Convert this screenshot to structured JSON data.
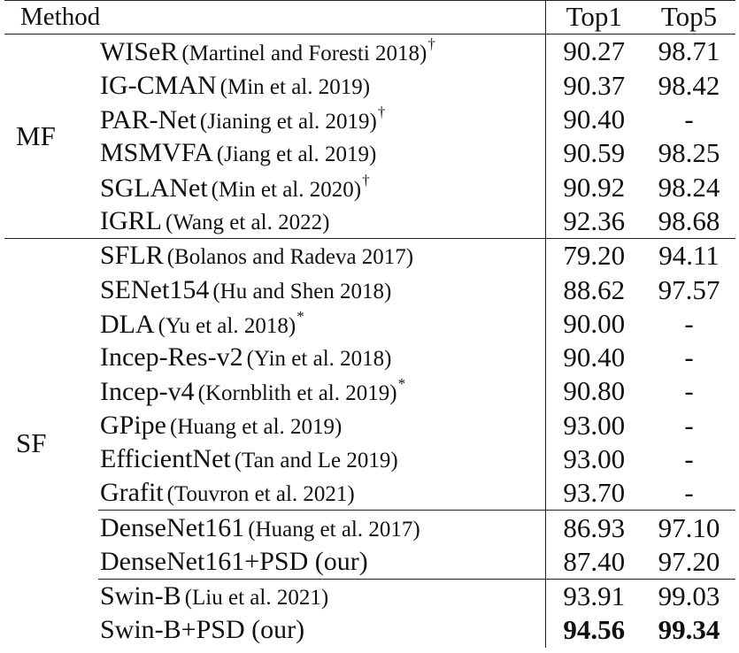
{
  "columns": {
    "method": "Method",
    "top1": "Top1",
    "top5": "Top5"
  },
  "groups": [
    {
      "label": "MF",
      "rows": [
        {
          "name": "WISeR",
          "cite": "(Martinel and Foresti 2018)",
          "mark": "†",
          "top1": "90.27",
          "top5": "98.71"
        },
        {
          "name": "IG-CMAN",
          "cite": "(Min et al. 2019)",
          "mark": "",
          "top1": "90.37",
          "top5": "98.42"
        },
        {
          "name": "PAR-Net",
          "cite": "(Jianing et al. 2019)",
          "mark": "†",
          "top1": "90.40",
          "top5": "-"
        },
        {
          "name": "MSMVFA",
          "cite": "(Jiang et al. 2019)",
          "mark": "",
          "top1": "90.59",
          "top5": "98.25"
        },
        {
          "name": "SGLANet",
          "cite": "(Min et al. 2020)",
          "mark": "†",
          "top1": "90.92",
          "top5": "98.24"
        },
        {
          "name": "IGRL",
          "cite": "(Wang et al. 2022)",
          "mark": "",
          "top1": "92.36",
          "top5": "98.68"
        }
      ]
    },
    {
      "label": "SF",
      "rows": [
        {
          "name": "SFLR",
          "cite": "(Bolanos and Radeva 2017)",
          "mark": "",
          "top1": "79.20",
          "top5": "94.11"
        },
        {
          "name": "SENet154",
          "cite": "(Hu and Shen 2018)",
          "mark": "",
          "top1": "88.62",
          "top5": "97.57"
        },
        {
          "name": "DLA",
          "cite": "(Yu et al. 2018)",
          "mark": "*",
          "top1": "90.00",
          "top5": "-"
        },
        {
          "name": "Incep-Res-v2",
          "cite": "(Yin et al. 2018)",
          "mark": "",
          "top1": "90.40",
          "top5": "-"
        },
        {
          "name": "Incep-v4",
          "cite": "(Kornblith et al. 2019)",
          "mark": "*",
          "top1": "90.80",
          "top5": "-"
        },
        {
          "name": "GPipe",
          "cite": "(Huang et al. 2019)",
          "mark": "",
          "top1": "93.00",
          "top5": "-"
        },
        {
          "name": "EfficientNet",
          "cite": "(Tan and Le 2019)",
          "mark": "",
          "top1": "93.00",
          "top5": "-"
        },
        {
          "name": "Grafit",
          "cite": "(Touvron et al. 2021)",
          "mark": "",
          "top1": "93.70",
          "top5": "-"
        },
        {
          "name": "DenseNet161",
          "cite": "(Huang et al. 2017)",
          "mark": "",
          "top1": "86.93",
          "top5": "97.10",
          "subStart": true
        },
        {
          "name": "DenseNet161+PSD (our)",
          "cite": "",
          "mark": "",
          "top1": "87.40",
          "top5": "97.20"
        },
        {
          "name": "Swin-B",
          "cite": "(Liu et al. 2021)",
          "mark": "",
          "top1": "93.91",
          "top5": "99.03",
          "subStart": true
        },
        {
          "name": "Swin-B+PSD (our)",
          "cite": "",
          "mark": "",
          "top1": "94.56",
          "top5": "99.34",
          "bold": true
        }
      ]
    }
  ]
}
